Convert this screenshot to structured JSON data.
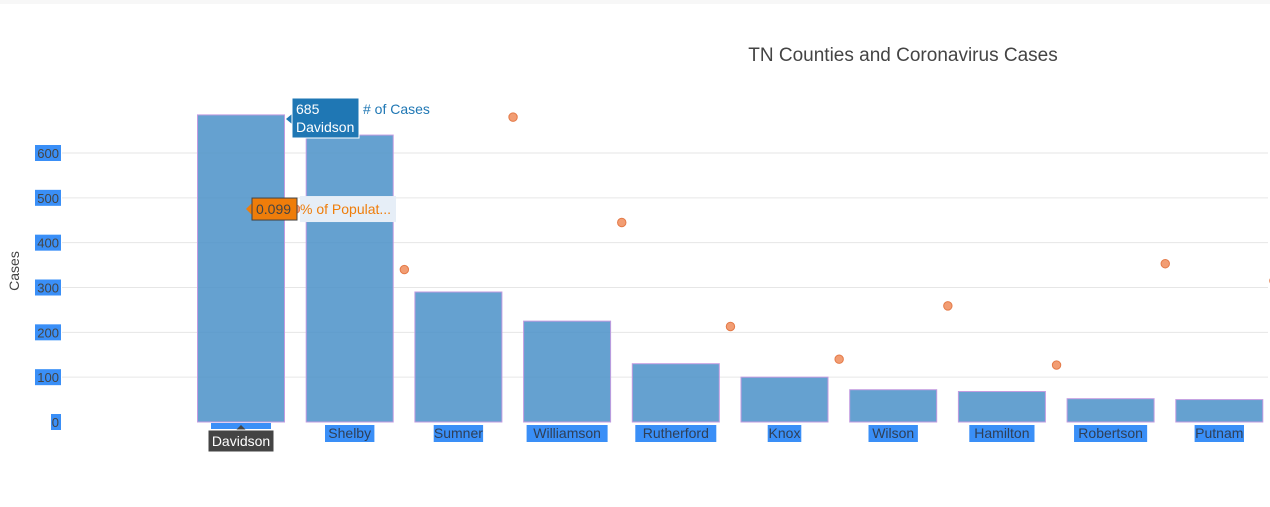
{
  "chart_data": {
    "type": "bar",
    "title": "TN Counties and Coronavirus Cases",
    "ylabel": "Cases",
    "xlabel": "",
    "ylim": [
      0,
      690
    ],
    "yticks": [
      0,
      100,
      200,
      300,
      400,
      500,
      600
    ],
    "categories": [
      "Davidson",
      "Shelby",
      "Sumner",
      "Williamson",
      "Rutherford",
      "Knox",
      "Wilson",
      "Hamilton",
      "Robertson",
      "Putnam"
    ],
    "series": [
      {
        "name": "# of Cases",
        "type": "bar",
        "color": "#4a90c8",
        "values": [
          685,
          640,
          290,
          225,
          130,
          100,
          72,
          68,
          52,
          50
        ]
      },
      {
        "name": "% of Populat...",
        "type": "scatter",
        "color": "#f08c5a",
        "values": [
          475,
          340,
          680,
          445,
          213,
          140,
          259,
          127,
          353,
          315
        ]
      }
    ],
    "hover": {
      "bar": {
        "value": "685",
        "category": "Davidson",
        "series": "# of Cases"
      },
      "scatter": {
        "value": "0.099",
        "series": "% of Populat..."
      },
      "x_label": "Davidson"
    }
  }
}
